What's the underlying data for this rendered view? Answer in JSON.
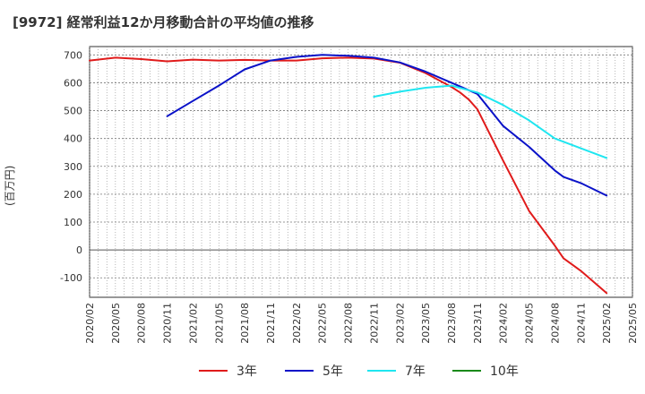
{
  "chart_data": {
    "type": "line",
    "title": "[9972]  経常利益12か月移動合計の平均値の推移",
    "ylabel": "(百万円)",
    "xlabel": "",
    "ylim": [
      -170,
      730
    ],
    "y_ticks": [
      700,
      600,
      500,
      400,
      300,
      200,
      100,
      0,
      -100
    ],
    "x_ticks": [
      "2020/02",
      "2020/05",
      "2020/08",
      "2020/11",
      "2021/02",
      "2021/05",
      "2021/08",
      "2021/11",
      "2022/02",
      "2022/05",
      "2022/08",
      "2022/11",
      "2023/02",
      "2023/05",
      "2023/08",
      "2023/11",
      "2024/02",
      "2024/05",
      "2024/08",
      "2024/11",
      "2025/02",
      "2025/05"
    ],
    "grid": true,
    "legend_position": "bottom",
    "series": [
      {
        "name": "3年",
        "color": "#e01b1b",
        "x": [
          "2020/02",
          "2020/05",
          "2020/08",
          "2020/11",
          "2021/02",
          "2021/05",
          "2021/08",
          "2021/11",
          "2022/02",
          "2022/05",
          "2022/08",
          "2022/11",
          "2023/02",
          "2023/05",
          "2023/08",
          "2023/09",
          "2023/10",
          "2023/11",
          "2024/02",
          "2024/05",
          "2024/08",
          "2024/09",
          "2024/11",
          "2025/02"
        ],
        "values": [
          680,
          690,
          685,
          677,
          683,
          680,
          682,
          680,
          680,
          688,
          690,
          687,
          672,
          635,
          585,
          565,
          540,
          505,
          320,
          140,
          15,
          -30,
          -75,
          -155
        ]
      },
      {
        "name": "5年",
        "color": "#0a12c8",
        "x": [
          "2020/11",
          "2021/02",
          "2021/05",
          "2021/08",
          "2021/11",
          "2022/02",
          "2022/05",
          "2022/08",
          "2022/11",
          "2023/02",
          "2023/05",
          "2023/08",
          "2023/11",
          "2024/02",
          "2024/05",
          "2024/08",
          "2024/09",
          "2024/11",
          "2025/02"
        ],
        "values": [
          480,
          535,
          590,
          648,
          680,
          693,
          700,
          697,
          690,
          673,
          640,
          600,
          560,
          445,
          370,
          285,
          262,
          240,
          195
        ]
      },
      {
        "name": "7年",
        "color": "#1fe6f0",
        "x": [
          "2022/11",
          "2023/02",
          "2023/05",
          "2023/08",
          "2023/11",
          "2024/02",
          "2024/05",
          "2024/08",
          "2024/11",
          "2025/02"
        ],
        "values": [
          550,
          568,
          582,
          590,
          565,
          520,
          465,
          400,
          365,
          330
        ]
      },
      {
        "name": "10年",
        "color": "#1a8a1a",
        "x": [],
        "values": []
      }
    ]
  }
}
